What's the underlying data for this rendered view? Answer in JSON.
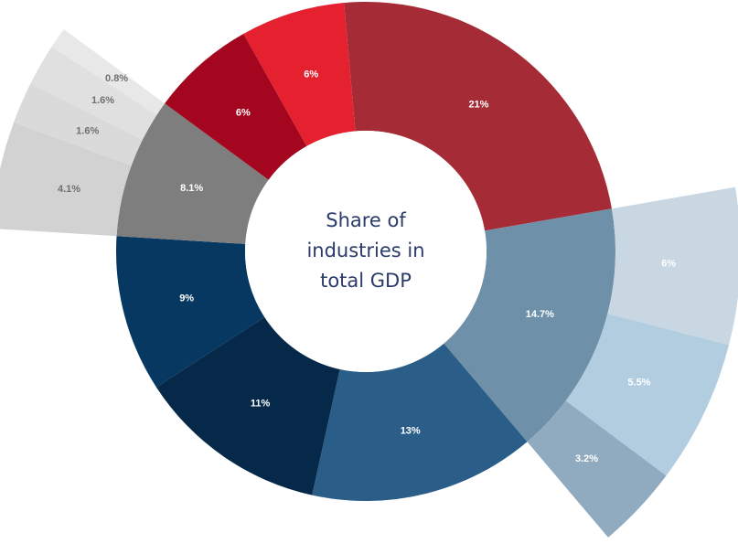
{
  "chart_data": {
    "type": "sunburst",
    "title": "",
    "center_label": [
      "Share of",
      "industries in",
      "total GDP"
    ],
    "inner": [
      {
        "label": "21%",
        "value": 21,
        "color": "#a52c36"
      },
      {
        "label": "14.7%",
        "value": 14.7,
        "color": "#6e91a9"
      },
      {
        "label": "13%",
        "value": 13,
        "color": "#2a5d87"
      },
      {
        "label": "11%",
        "value": 11,
        "color": "#06294a"
      },
      {
        "label": "9%",
        "value": 9,
        "color": "#063861"
      },
      {
        "label": "8.1%",
        "value": 8.1,
        "color": "#7e7e7e"
      },
      {
        "label": "6%",
        "value": 6,
        "color": "#a3061e"
      },
      {
        "label": "6%",
        "value": 6,
        "color": "#e5202f"
      }
    ],
    "outer": [
      {
        "label": "6%",
        "value": 6,
        "parent": 1,
        "color": "#c9d7e2",
        "text_color": "#ffffff"
      },
      {
        "label": "5.5%",
        "value": 5.5,
        "parent": 1,
        "color": "#b2cde0",
        "text_color": "#ffffff"
      },
      {
        "label": "3.2%",
        "value": 3.2,
        "parent": 1,
        "color": "#90abc0",
        "text_color": "#ffffff"
      },
      {
        "label": "4.1%",
        "value": 4.1,
        "parent": 5,
        "color": "#d2d2d2",
        "text_color": "#707070"
      },
      {
        "label": "1.6%",
        "value": 1.6,
        "parent": 5,
        "color": "#dadada",
        "text_color": "#707070"
      },
      {
        "label": "1.6%",
        "value": 1.6,
        "parent": 5,
        "color": "#e0e0e0",
        "text_color": "#707070"
      },
      {
        "label": "0.8%",
        "value": 0.8,
        "parent": 5,
        "color": "#e8e8e8",
        "text_color": "#707070"
      }
    ]
  }
}
